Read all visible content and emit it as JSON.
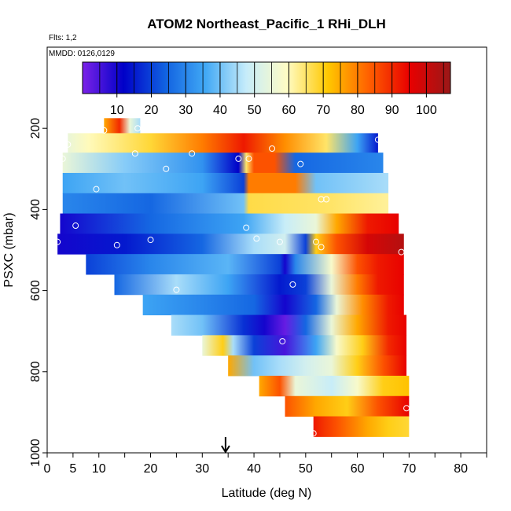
{
  "chart_data": {
    "type": "heatmap",
    "title": "ATOM2 Northeast_Pacific_1 RHi_DLH",
    "flights_label": "Flts: 1,2",
    "dates_label": "MMDD: 0126,0129",
    "xlabel": "Latitude (deg N)",
    "ylabel": "PSXC (mbar)",
    "xlim": [
      0,
      85
    ],
    "ylim": [
      1000,
      0
    ],
    "x_ticks": [
      0,
      5,
      10,
      20,
      30,
      40,
      50,
      60,
      70,
      80
    ],
    "x_minor_ticks": [
      15,
      25,
      35,
      45,
      55,
      65,
      75,
      85
    ],
    "y_ticks": [
      200,
      400,
      600,
      800,
      1000
    ],
    "colorbar": {
      "ticks": [
        "10",
        "20",
        "30",
        "40",
        "50",
        "60",
        "70",
        "80",
        "90",
        "100"
      ],
      "range": [
        0,
        107
      ],
      "stops": [
        "#7b22e8",
        "#0000c8",
        "#1060e0",
        "#40a8f5",
        "#c6ecfa",
        "#fffcc4",
        "#ffc800",
        "#ff6000",
        "#e80000",
        "#9a1818"
      ]
    },
    "arrow_marker": {
      "latitude": 34.5
    },
    "bands": [
      {
        "pmin": 175,
        "pmax": 212,
        "lat0": 11,
        "lat1": 18,
        "stops": [
          [
            11,
            75
          ],
          [
            14,
            90
          ],
          [
            16,
            55
          ],
          [
            18,
            45
          ]
        ]
      },
      {
        "pmin": 212,
        "pmax": 260,
        "lat0": 4,
        "lat1": 64,
        "stops": [
          [
            4,
            55
          ],
          [
            8,
            60
          ],
          [
            20,
            68
          ],
          [
            30,
            80
          ],
          [
            38,
            92
          ],
          [
            46,
            78
          ],
          [
            54,
            65
          ],
          [
            60,
            35
          ],
          [
            64,
            15
          ]
        ]
      },
      {
        "pmin": 260,
        "pmax": 310,
        "lat0": 3,
        "lat1": 65,
        "stops": [
          [
            3,
            55
          ],
          [
            15,
            42
          ],
          [
            30,
            32
          ],
          [
            37,
            12
          ],
          [
            38.5,
            65
          ],
          [
            40,
            85
          ],
          [
            44,
            85
          ],
          [
            48,
            25
          ],
          [
            65,
            30
          ]
        ]
      },
      {
        "pmin": 310,
        "pmax": 360,
        "lat0": 3,
        "lat1": 66,
        "stops": [
          [
            3,
            35
          ],
          [
            15,
            40
          ],
          [
            30,
            35
          ],
          [
            38,
            20
          ],
          [
            39,
            80
          ],
          [
            48,
            80
          ],
          [
            52,
            40
          ],
          [
            66,
            45
          ]
        ]
      },
      {
        "pmin": 360,
        "pmax": 410,
        "lat0": 3,
        "lat1": 66,
        "stops": [
          [
            3,
            30
          ],
          [
            20,
            25
          ],
          [
            38,
            40
          ],
          [
            39,
            67
          ],
          [
            55,
            65
          ],
          [
            66,
            62
          ]
        ]
      },
      {
        "pmin": 410,
        "pmax": 460,
        "lat0": 2.5,
        "lat1": 68,
        "stops": [
          [
            2.5,
            10
          ],
          [
            20,
            25
          ],
          [
            38,
            35
          ],
          [
            46,
            48
          ],
          [
            52,
            55
          ],
          [
            56,
            75
          ],
          [
            62,
            92
          ],
          [
            68,
            95
          ]
        ]
      },
      {
        "pmin": 460,
        "pmax": 510,
        "lat0": 2,
        "lat1": 69,
        "stops": [
          [
            2,
            10
          ],
          [
            15,
            15
          ],
          [
            30,
            25
          ],
          [
            40,
            45
          ],
          [
            46,
            50
          ],
          [
            50,
            20
          ],
          [
            52,
            70
          ],
          [
            56,
            85
          ],
          [
            62,
            98
          ],
          [
            69,
            103
          ]
        ]
      },
      {
        "pmin": 510,
        "pmax": 560,
        "lat0": 7.5,
        "lat1": 69,
        "stops": [
          [
            7.5,
            20
          ],
          [
            20,
            30
          ],
          [
            35,
            38
          ],
          [
            45,
            20
          ],
          [
            46,
            10
          ],
          [
            48,
            30
          ],
          [
            55,
            58
          ],
          [
            60,
            85
          ],
          [
            64,
            92
          ],
          [
            69,
            95
          ]
        ]
      },
      {
        "pmin": 560,
        "pmax": 610,
        "lat0": 13,
        "lat1": 69,
        "stops": [
          [
            13,
            25
          ],
          [
            25,
            45
          ],
          [
            35,
            35
          ],
          [
            45,
            15
          ],
          [
            50,
            20
          ],
          [
            55,
            55
          ],
          [
            60,
            80
          ],
          [
            64,
            92
          ],
          [
            69,
            95
          ]
        ]
      },
      {
        "pmin": 610,
        "pmax": 660,
        "lat0": 18.5,
        "lat1": 69,
        "stops": [
          [
            18.5,
            35
          ],
          [
            30,
            30
          ],
          [
            40,
            25
          ],
          [
            46,
            10
          ],
          [
            52,
            25
          ],
          [
            56,
            55
          ],
          [
            61,
            78
          ],
          [
            66,
            92
          ],
          [
            69,
            95
          ]
        ]
      },
      {
        "pmin": 660,
        "pmax": 710,
        "lat0": 24,
        "lat1": 69.5,
        "stops": [
          [
            24,
            45
          ],
          [
            30,
            40
          ],
          [
            38,
            18
          ],
          [
            42,
            10
          ],
          [
            46,
            2
          ],
          [
            50,
            25
          ],
          [
            55,
            55
          ],
          [
            60,
            75
          ],
          [
            66,
            92
          ],
          [
            69.5,
            95
          ]
        ]
      },
      {
        "pmin": 710,
        "pmax": 760,
        "lat0": 30,
        "lat1": 69.5,
        "stops": [
          [
            30,
            55
          ],
          [
            34,
            70
          ],
          [
            36,
            45
          ],
          [
            40,
            20
          ],
          [
            46,
            5
          ],
          [
            52,
            35
          ],
          [
            56,
            58
          ],
          [
            61,
            70
          ],
          [
            66,
            90
          ],
          [
            69.5,
            95
          ]
        ]
      },
      {
        "pmin": 760,
        "pmax": 810,
        "lat0": 35,
        "lat1": 69.5,
        "stops": [
          [
            35,
            75
          ],
          [
            40,
            40
          ],
          [
            45,
            45
          ],
          [
            50,
            50
          ],
          [
            55,
            55
          ],
          [
            60,
            70
          ],
          [
            65,
            85
          ],
          [
            69.5,
            95
          ]
        ]
      },
      {
        "pmin": 810,
        "pmax": 860,
        "lat0": 41,
        "lat1": 70,
        "stops": [
          [
            41,
            75
          ],
          [
            45,
            85
          ],
          [
            48,
            55
          ],
          [
            55,
            48
          ],
          [
            60,
            58
          ],
          [
            65,
            70
          ],
          [
            70,
            72
          ]
        ]
      },
      {
        "pmin": 860,
        "pmax": 910,
        "lat0": 46,
        "lat1": 70,
        "stops": [
          [
            46,
            85
          ],
          [
            52,
            75
          ],
          [
            58,
            70
          ],
          [
            64,
            85
          ],
          [
            70,
            95
          ]
        ]
      },
      {
        "pmin": 910,
        "pmax": 960,
        "lat0": 51.5,
        "lat1": 70,
        "stops": [
          [
            51.5,
            92
          ],
          [
            56,
            85
          ],
          [
            62,
            75
          ],
          [
            66,
            70
          ],
          [
            70,
            68
          ]
        ]
      }
    ],
    "circles": [
      [
        11,
        205
      ],
      [
        17.5,
        200
      ],
      [
        4,
        240
      ],
      [
        3,
        275
      ],
      [
        17,
        262
      ],
      [
        23,
        300
      ],
      [
        28,
        262
      ],
      [
        37,
        275
      ],
      [
        39,
        275
      ],
      [
        43.5,
        250
      ],
      [
        49,
        288
      ],
      [
        64,
        228
      ],
      [
        9.5,
        350
      ],
      [
        53,
        375
      ],
      [
        54,
        375
      ],
      [
        5.5,
        440
      ],
      [
        13.5,
        488
      ],
      [
        20,
        475
      ],
      [
        38.5,
        445
      ],
      [
        40.5,
        472
      ],
      [
        45,
        480
      ],
      [
        52,
        480
      ],
      [
        53,
        493
      ],
      [
        68.5,
        505
      ],
      [
        2,
        480
      ],
      [
        47.5,
        585
      ],
      [
        25,
        598
      ],
      [
        45.5,
        725
      ],
      [
        69.5,
        890
      ],
      [
        51.5,
        952
      ]
    ]
  }
}
